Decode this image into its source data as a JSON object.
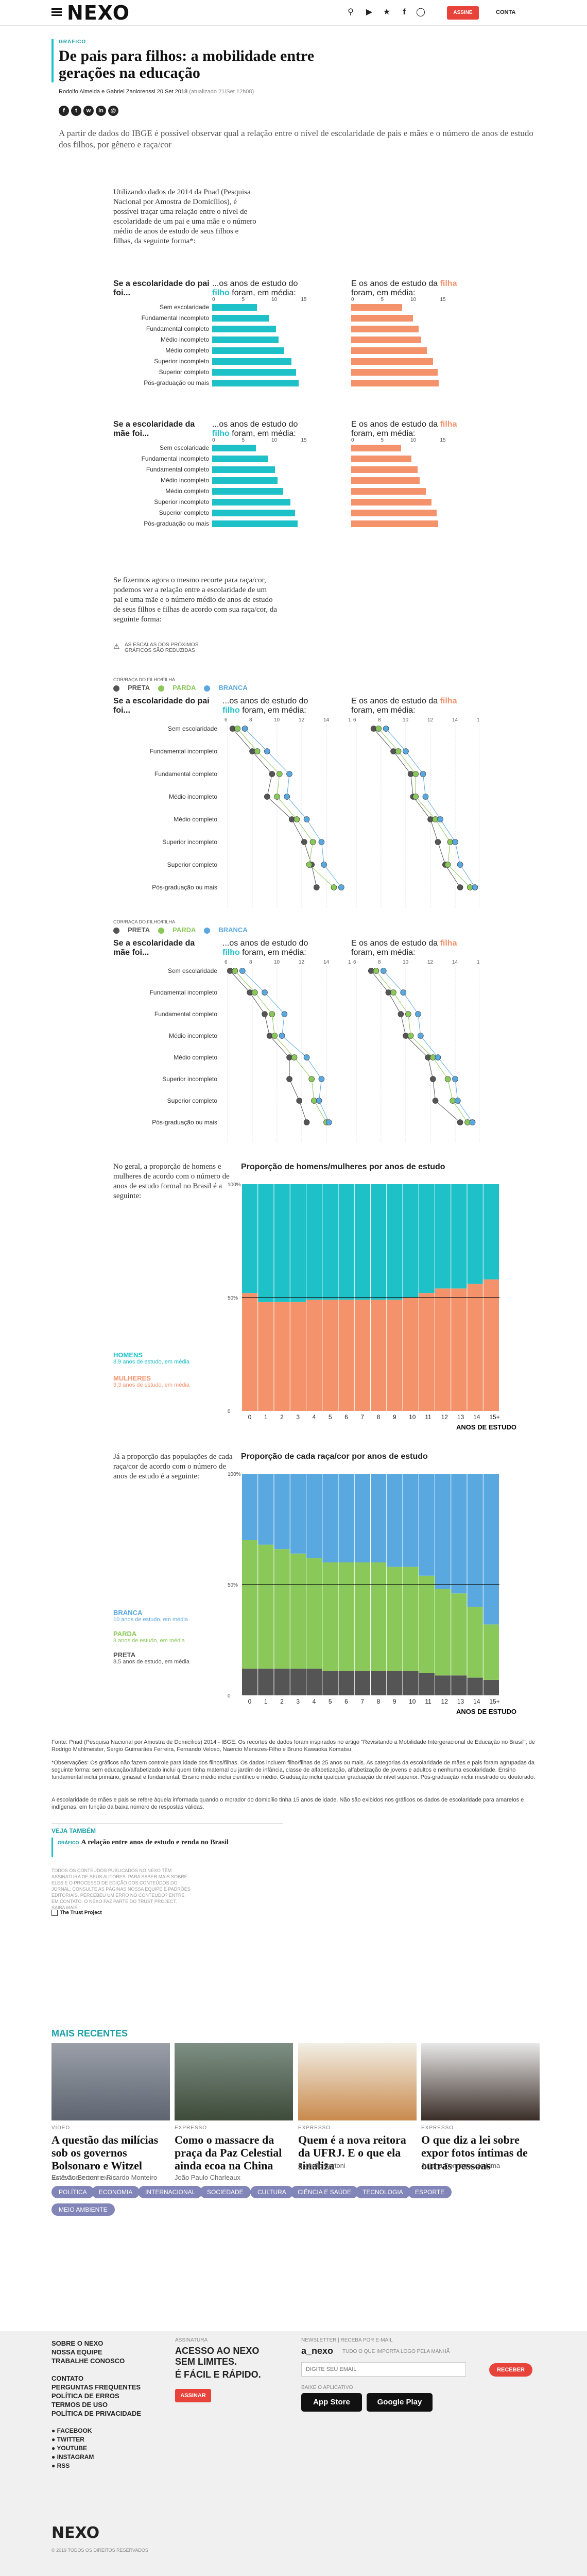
{
  "header": {
    "logo": "NEXO",
    "subscribe": "ASSINE",
    "account": "CONTA",
    "icons": [
      "search-icon",
      "youtube-icon",
      "twitter-icon",
      "facebook-icon",
      "instagram-icon"
    ]
  },
  "article": {
    "kicker": "GRÁFICO",
    "title": "De pais para filhos: a mobilidade entre gerações na educação",
    "byline": "Rodolfo Almeida e Gabriel Zanlorenssi",
    "date": "20 Set 2018",
    "updated": "(atualizado 21/Set 12h08)",
    "lead": "A partir de dados do IBGE é possível observar qual a relação entre o nível de escolaridade de pais e mães e o número de anos de estudo dos filhos, por gênero e raça/cor",
    "intro": "Utilizando dados de 2014 da Pnad (Pesquisa Nacional por Amostra de Domicílios), é possível traçar uma relação entre o nível de escolaridade de um pai e uma mãe e o número médio de anos de estudo de seus filhos e filhas, da seguinte forma*:",
    "race_intro": "Se fizermos agora o mesmo recorte para raça/cor, podemos ver a relação entre a escolaridade de um pai e uma mãe e o número médio de anos de estudo de seus filhos e filhas de acordo com sua raça/cor, da seguinte forma:",
    "scale_note": "AS ESCALAS DOS PRÓXIMOS GRÁFICOS SÃO REDUZIDAS",
    "gender_intro": "No geral, a proporção de homens e mulheres de acordo com o número de anos de estudo formal no Brasil é a seguinte:",
    "race_prop_intro": "Já a proporção das populações de cada raça/cor de acordo com o número de anos de estudo é a seguinte:"
  },
  "labels": {
    "father": "Se a escolaridade do pai foi...",
    "mother": "Se a escolaridade da mãe foi...",
    "son": "...os anos de estudo do filho foram, em média:",
    "daughter": "E os anos de estudo da filha foram, em média:",
    "race_legend_title": "COR/RAÇA DO FILHO/FILHA",
    "preta": "PRETA",
    "parda": "PARDA",
    "branca": "BRANCA"
  },
  "categories": [
    "Sem escolaridade",
    "Fundamental incompleto",
    "Fundamental completo",
    "Médio incompleto",
    "Médio completo",
    "Superior incompleto",
    "Superior completo",
    "Pós-graduação ou mais"
  ],
  "chart_data": [
    {
      "type": "bar",
      "title": "Se a escolaridade do pai foi... / ...os anos de estudo do filho foram, em média:",
      "categories": [
        "Sem escolaridade",
        "Fundamental incompleto",
        "Fundamental completo",
        "Médio incompleto",
        "Médio completo",
        "Superior incompleto",
        "Superior completo",
        "Pós-graduação ou mais"
      ],
      "values": [
        7.6,
        9.6,
        10.8,
        11.2,
        12.2,
        13.4,
        14.2,
        14.6
      ],
      "xlim": [
        0,
        15
      ],
      "ticks": [
        0,
        5,
        10,
        15
      ]
    },
    {
      "type": "bar",
      "title": "E os anos de estudo da filha foram, em média:",
      "categories": [
        "Sem escolaridade",
        "Fundamental incompleto",
        "Fundamental completo",
        "Médio incompleto",
        "Médio completo",
        "Superior incompleto",
        "Superior completo",
        "Pós-graduação ou mais"
      ],
      "values": [
        8.6,
        10.4,
        11.4,
        11.8,
        12.8,
        13.8,
        14.6,
        14.8
      ],
      "xlim": [
        0,
        15
      ],
      "ticks": [
        0,
        5,
        10,
        15
      ]
    },
    {
      "type": "bar",
      "title": "Se a escolaridade da mãe foi... / filho",
      "values": [
        7.4,
        9.4,
        10.6,
        11.0,
        12.0,
        13.2,
        14.0,
        14.4
      ],
      "xlim": [
        0,
        15
      ]
    },
    {
      "type": "bar",
      "title": "mãe / filha",
      "values": [
        8.4,
        10.2,
        11.2,
        11.6,
        12.6,
        13.6,
        14.4,
        14.7
      ],
      "xlim": [
        0,
        15
      ]
    },
    {
      "type": "scatter",
      "title": "pai / filho por raça",
      "xlim": [
        6,
        16
      ],
      "series": [
        {
          "name": "PRETA",
          "values": [
            6.4,
            8.0,
            9.6,
            9.2,
            11.2,
            12.2,
            12.8,
            13.2
          ]
        },
        {
          "name": "PARDA",
          "values": [
            6.8,
            8.4,
            10.2,
            10.0,
            11.6,
            12.9,
            12.6,
            14.6
          ]
        },
        {
          "name": "BRANCA",
          "values": [
            7.4,
            9.2,
            11.0,
            10.8,
            12.4,
            13.6,
            13.8,
            15.2
          ]
        }
      ]
    },
    {
      "type": "scatter",
      "title": "pai / filha por raça",
      "xlim": [
        6,
        16
      ],
      "series": [
        {
          "name": "PRETA",
          "values": [
            7.4,
            9.0,
            10.4,
            10.6,
            12.0,
            12.6,
            13.2,
            14.4
          ]
        },
        {
          "name": "PARDA",
          "values": [
            7.8,
            9.4,
            10.8,
            10.8,
            12.4,
            13.6,
            13.4,
            15.2
          ]
        },
        {
          "name": "BRANCA",
          "values": [
            8.4,
            10.0,
            11.4,
            11.6,
            12.8,
            14.0,
            14.4,
            15.6
          ]
        }
      ]
    },
    {
      "type": "scatter",
      "title": "mãe / filho por raça",
      "xlim": [
        6,
        16
      ],
      "series": [
        {
          "name": "PRETA",
          "values": [
            6.2,
            7.8,
            9.0,
            9.4,
            11.0,
            11.0,
            11.8,
            12.4
          ]
        },
        {
          "name": "PARDA",
          "values": [
            6.6,
            8.2,
            9.6,
            9.8,
            11.4,
            12.8,
            13.0,
            14.0
          ]
        },
        {
          "name": "BRANCA",
          "values": [
            7.2,
            9.0,
            10.6,
            10.4,
            12.4,
            13.6,
            13.4,
            14.2
          ]
        }
      ]
    },
    {
      "type": "scatter",
      "title": "mãe / filha por raça",
      "xlim": [
        6,
        16
      ],
      "series": [
        {
          "name": "PRETA",
          "values": [
            7.2,
            8.6,
            9.6,
            10.0,
            11.8,
            12.2,
            12.4,
            14.4
          ]
        },
        {
          "name": "PARDA",
          "values": [
            7.6,
            9.0,
            10.2,
            10.4,
            12.2,
            13.4,
            13.8,
            15.0
          ]
        },
        {
          "name": "BRANCA",
          "values": [
            8.2,
            9.8,
            11.0,
            11.2,
            12.6,
            14.0,
            14.2,
            15.4
          ]
        }
      ]
    },
    {
      "type": "bar",
      "stacked": true,
      "title": "Proporção de homens/mulheres por anos de estudo",
      "categories": [
        "0",
        "1",
        "2",
        "3",
        "4",
        "5",
        "6",
        "7",
        "8",
        "9",
        "10",
        "11",
        "12",
        "13",
        "14",
        "15+"
      ],
      "series": [
        {
          "name": "HOMENS",
          "values": [
            48,
            52,
            52,
            52,
            51,
            51,
            51,
            51,
            51,
            51,
            50,
            48,
            46,
            46,
            44,
            42
          ]
        },
        {
          "name": "MULHERES",
          "values": [
            52,
            48,
            48,
            48,
            49,
            49,
            49,
            49,
            49,
            49,
            50,
            52,
            54,
            54,
            56,
            58
          ]
        }
      ],
      "xlabel": "ANOS DE ESTUDO",
      "ylim": [
        0,
        100
      ]
    },
    {
      "type": "bar",
      "stacked": true,
      "title": "Proporção de cada raça/cor por anos de estudo",
      "categories": [
        "0",
        "1",
        "2",
        "3",
        "4",
        "5",
        "6",
        "7",
        "8",
        "9",
        "10",
        "11",
        "12",
        "13",
        "14",
        "15+"
      ],
      "series": [
        {
          "name": "BRANCA",
          "values": [
            30,
            32,
            34,
            36,
            38,
            40,
            40,
            40,
            40,
            42,
            42,
            46,
            52,
            54,
            60,
            68
          ]
        },
        {
          "name": "PARDA",
          "values": [
            58,
            56,
            54,
            52,
            50,
            49,
            49,
            49,
            49,
            47,
            47,
            44,
            39,
            37,
            32,
            25
          ]
        },
        {
          "name": "PRETA",
          "values": [
            12,
            12,
            12,
            12,
            12,
            11,
            11,
            11,
            11,
            11,
            11,
            10,
            9,
            9,
            8,
            7
          ]
        }
      ],
      "xlabel": "ANOS DE ESTUDO",
      "ylim": [
        0,
        100
      ]
    }
  ],
  "gender_legend": {
    "men": "HOMENS",
    "men_sub": "8,9 anos de estudo, em média",
    "women": "MULHERES",
    "women_sub": "9,3 anos de estudo, em média"
  },
  "race_legend": {
    "branca": "BRANCA",
    "branca_sub": "10 anos de estudo, em média",
    "parda": "PARDA",
    "parda_sub": "8 anos de estudo, em média",
    "preta": "PRETA",
    "preta_sub": "8,5 anos de estudo, em média"
  },
  "notes": {
    "source": "Fonte: Pnad (Pesquisa Nacional por Amostra de Domicílios) 2014 - IBGE. Os recortes de dados foram inspirados no artigo \"Revisitando a Mobilidade Intergeracional de Educação no Brasil\", de Rodrigo Mahlmeister, Sergio Guimarães Ferreira, Fernando Veloso, Naercio Menezes-Filho e Bruno Kawaoka Komatsu.",
    "obs": "*Observações: Os gráficos não fazem controle para idade dos filhos/filhas. Os dados incluem filho/filhas de 25 anos ou mais. As categorias da escolaridade de mães e pais foram agrupadas da seguinte forma: sem educação/alfabetizado inclui quem tinha maternal ou jardim de infância, classe de alfabetização, alfabetização de jovens e adultos e nenhuma escolaridade. Ensino fundamental inclui primário, ginasial e fundamental. Ensino médio inclui científico e médio. Graduação inclui qualquer graduação de nível superior. Pós-graduação inclui mestrado ou doutorado.",
    "obs2": "A escolaridade de mães e pais se refere àquela informada quando o morador do domicílio tinha 15 anos de idade. Não são exibidos nos gráficos os dados de escolaridade para amarelos e indígenas, em função da baixa número de respostas válidas."
  },
  "see_also": {
    "title": "VEJA TAMBÉM",
    "kicker": "GRÁFICO",
    "link": "A relação entre anos de estudo e renda no Brasil"
  },
  "rights": "TODOS OS CONTEÚDOS PUBLICADOS NO NEXO TÊM ASSINATURA DE SEUS AUTORES. PARA SABER MAIS SOBRE ELES E O PROCESSO DE EDIÇÃO DOS CONTEÚDOS DO JORNAL, CONSULTE AS PÁGINAS NOSSA EQUIPE E PADRÕES EDITORIAIS. PERCEBEU UM ERRO NO CONTEÚDO? ENTRE EM CONTATO. O NEXO FAZ PARTE DO TRUST PROJECT. SAIBA MAIS.",
  "trust": "The Trust Project",
  "recent": {
    "title": "MAIS RECENTES",
    "cards": [
      {
        "cat": "VÍDEO",
        "title": "A questão das milícias sob os governos Bolsonaro e Witzel",
        "author": "Estêvão Bertoni e Ricardo Monteiro"
      },
      {
        "cat": "EXPRESSO",
        "title": "Como o massacre da praça da Paz Celestial ainda ecoa na China",
        "author": "João Paulo Charleaux"
      },
      {
        "cat": "EXPRESSO",
        "title": "Quem é a nova reitora da UFRJ. E o que ela sinaliza",
        "author": "Estêvão Bertoni"
      },
      {
        "cat": "EXPRESSO",
        "title": "O que diz a lei sobre expor fotos íntimas de outras pessoas",
        "author": "Juliana Domingos de Lima"
      }
    ]
  },
  "topics": {
    "title": "NAVEGUE POR TEMAS",
    "items": [
      "POLÍTICA",
      "ECONOMIA",
      "INTERNACIONAL",
      "SOCIEDADE",
      "CULTURA",
      "CIÊNCIA E SAÚDE",
      "TECNOLOGIA",
      "ESPORTE",
      "MEIO AMBIENTE"
    ]
  },
  "footer": {
    "links1": [
      "SOBRE O NEXO",
      "NOSSA EQUIPE",
      "TRABALHE CONOSCO"
    ],
    "links2": [
      "CONTATO",
      "PERGUNTAS FREQUENTES",
      "POLÍTICA DE ERROS",
      "TERMOS DE USO",
      "POLÍTICA DE PRIVACIDADE"
    ],
    "social": [
      "FACEBOOK",
      "TWITTER",
      "YOUTUBE",
      "INSTAGRAM",
      "RSS"
    ],
    "sub_label": "ASSINATURA",
    "sub_text": "ACESSO AO NEXO SEM LIMITES.",
    "sub_text2": "É FÁCIL E RÁPIDO.",
    "sub_btn": "ASSINAR",
    "news_label": "NEWSLETTER | RECEBA POR E-MAIL",
    "news_name": "a_nexo",
    "news_desc": "TUDO O QUE IMPORTA LOGO PELA MANHÃ",
    "news_placeholder": "DIGITE SEU EMAIL",
    "news_btn": "RECEBER",
    "app_label": "BAIXE O APLICATIVO",
    "appstore": "App Store",
    "googleplay": "Google Play",
    "logo": "NEXO",
    "copy": "© 2019 TODOS OS DIREITOS RESERVADOS"
  },
  "colors": {
    "teal": "#1fc1c9",
    "orange": "#f4936b",
    "preta": "#555555",
    "parda": "#8bc85a",
    "branca": "#5aa8e0",
    "red": "#e8433b",
    "purple": "#8285b8"
  }
}
